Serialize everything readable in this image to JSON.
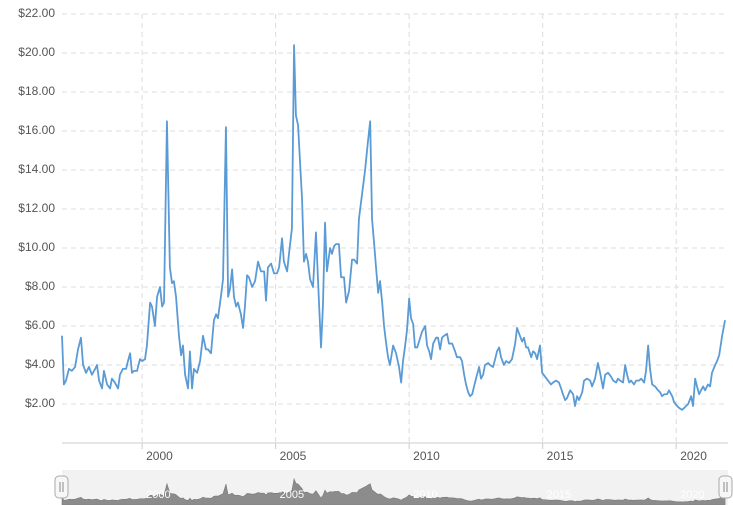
{
  "chart_data": {
    "type": "line",
    "color": "#5b9bd5",
    "grid": true,
    "xlim": [
      1997,
      2021.94
    ],
    "ylim": [
      0,
      22
    ],
    "xticks": [
      2000,
      2005,
      2010,
      2015,
      2020
    ],
    "yticks": [
      {
        "value": 2,
        "label": "$2.00"
      },
      {
        "value": 4,
        "label": "$4.00"
      },
      {
        "value": 6,
        "label": "$6.00"
      },
      {
        "value": 8,
        "label": "$8.00"
      },
      {
        "value": 10,
        "label": "$10.00"
      },
      {
        "value": 12,
        "label": "$12.00"
      },
      {
        "value": 14,
        "label": "$14.00"
      },
      {
        "value": 16,
        "label": "$16.00"
      },
      {
        "value": 18,
        "label": "$18.00"
      },
      {
        "value": 20,
        "label": "$20.00"
      },
      {
        "value": 22,
        "label": "$22.00"
      }
    ],
    "x": [
      1997.0,
      1997.07,
      1997.15,
      1997.26,
      1997.37,
      1997.49,
      1997.6,
      1997.71,
      1997.79,
      1997.9,
      1998.01,
      1998.12,
      1998.24,
      1998.31,
      1998.39,
      1998.5,
      1998.57,
      1998.69,
      1998.8,
      1998.87,
      1998.98,
      1999.1,
      1999.17,
      1999.28,
      1999.4,
      1999.47,
      1999.55,
      1999.62,
      1999.7,
      1999.81,
      1999.92,
      2000.0,
      2000.11,
      2000.18,
      2000.3,
      2000.37,
      2000.48,
      2000.56,
      2000.67,
      2000.75,
      2000.82,
      2000.93,
      2001.04,
      2001.12,
      2001.19,
      2001.27,
      2001.38,
      2001.46,
      2001.53,
      2001.61,
      2001.72,
      2001.79,
      2001.87,
      2001.94,
      2002.06,
      2002.17,
      2002.28,
      2002.39,
      2002.47,
      2002.58,
      2002.69,
      2002.77,
      2002.84,
      2002.95,
      2003.03,
      2003.14,
      2003.22,
      2003.29,
      2003.37,
      2003.44,
      2003.52,
      2003.59,
      2003.7,
      2003.78,
      2003.85,
      2003.93,
      2004.0,
      2004.12,
      2004.23,
      2004.34,
      2004.45,
      2004.57,
      2004.64,
      2004.71,
      2004.83,
      2004.94,
      2005.05,
      2005.13,
      2005.24,
      2005.31,
      2005.43,
      2005.5,
      2005.61,
      2005.69,
      2005.76,
      2005.84,
      2005.91,
      2005.99,
      2006.06,
      2006.14,
      2006.21,
      2006.29,
      2006.4,
      2006.51,
      2006.63,
      2006.7,
      2006.77,
      2006.85,
      2006.92,
      2007.04,
      2007.11,
      2007.19,
      2007.26,
      2007.37,
      2007.45,
      2007.56,
      2007.64,
      2007.75,
      2007.86,
      2007.94,
      2008.05,
      2008.12,
      2008.24,
      2008.35,
      2008.46,
      2008.54,
      2008.61,
      2008.69,
      2008.76,
      2008.84,
      2008.91,
      2008.99,
      2009.06,
      2009.13,
      2009.21,
      2009.28,
      2009.4,
      2009.51,
      2009.62,
      2009.7,
      2009.77,
      2009.85,
      2009.92,
      2010.0,
      2010.07,
      2010.15,
      2010.22,
      2010.3,
      2010.37,
      2010.48,
      2010.6,
      2010.67,
      2010.75,
      2010.82,
      2010.9,
      2011.01,
      2011.08,
      2011.16,
      2011.23,
      2011.31,
      2011.42,
      2011.49,
      2011.61,
      2011.72,
      2011.79,
      2011.91,
      2011.98,
      2012.06,
      2012.13,
      2012.21,
      2012.28,
      2012.36,
      2012.43,
      2012.54,
      2012.62,
      2012.69,
      2012.77,
      2012.84,
      2012.96,
      2013.03,
      2013.14,
      2013.22,
      2013.29,
      2013.37,
      2013.44,
      2013.55,
      2013.63,
      2013.74,
      2013.85,
      2013.97,
      2014.04,
      2014.12,
      2014.23,
      2014.3,
      2014.38,
      2014.45,
      2014.57,
      2014.64,
      2014.72,
      2014.79,
      2014.9,
      2014.98,
      2015.09,
      2015.2,
      2015.31,
      2015.39,
      2015.5,
      2015.61,
      2015.69,
      2015.76,
      2015.84,
      2015.91,
      2016.03,
      2016.14,
      2016.21,
      2016.29,
      2016.36,
      2016.48,
      2016.55,
      2016.66,
      2016.78,
      2016.85,
      2016.96,
      2017.07,
      2017.15,
      2017.26,
      2017.34,
      2017.45,
      2017.56,
      2017.64,
      2017.75,
      2017.82,
      2017.9,
      2018.01,
      2018.09,
      2018.16,
      2018.24,
      2018.31,
      2018.42,
      2018.5,
      2018.61,
      2018.69,
      2018.8,
      2018.87,
      2018.95,
      2019.02,
      2019.1,
      2019.21,
      2019.32,
      2019.4,
      2019.47,
      2019.55,
      2019.66,
      2019.73,
      2019.85,
      2019.92,
      2020.03,
      2020.11,
      2020.22,
      2020.3,
      2020.37,
      2020.45,
      2020.56,
      2020.63,
      2020.71,
      2020.78,
      2020.86,
      2020.93,
      2021.01,
      2021.08,
      2021.19,
      2021.27,
      2021.34,
      2021.46,
      2021.53,
      2021.61,
      2021.72,
      2021.83
    ],
    "values": [
      5.5,
      3.0,
      3.2,
      3.8,
      3.7,
      3.9,
      4.8,
      5.4,
      4.0,
      3.6,
      3.9,
      3.5,
      3.8,
      4.0,
      3.2,
      2.8,
      3.7,
      3.0,
      2.8,
      3.3,
      3.1,
      2.8,
      3.5,
      3.8,
      3.8,
      4.2,
      4.6,
      3.6,
      3.7,
      3.7,
      4.3,
      4.2,
      4.3,
      5.0,
      7.2,
      7.0,
      6.0,
      7.5,
      8.0,
      7.0,
      7.2,
      16.5,
      9.0,
      8.2,
      8.3,
      7.5,
      5.5,
      4.5,
      5.0,
      3.5,
      2.8,
      4.7,
      2.8,
      3.8,
      3.6,
      4.2,
      5.5,
      4.8,
      4.8,
      4.6,
      6.3,
      6.6,
      6.4,
      7.5,
      8.4,
      16.2,
      7.5,
      7.9,
      8.9,
      7.5,
      7.0,
      7.2,
      6.6,
      5.9,
      7.0,
      8.6,
      8.5,
      8.0,
      8.3,
      9.3,
      8.8,
      8.8,
      7.3,
      9.0,
      9.2,
      8.7,
      8.7,
      9.0,
      10.5,
      9.3,
      8.8,
      9.7,
      11.0,
      20.4,
      16.8,
      16.3,
      14.5,
      12.5,
      9.3,
      9.7,
      9.3,
      8.4,
      8.0,
      10.8,
      7.0,
      4.9,
      7.0,
      11.3,
      8.8,
      10.0,
      9.7,
      10.1,
      10.2,
      10.2,
      8.5,
      8.5,
      7.2,
      7.8,
      9.4,
      9.4,
      9.2,
      11.5,
      12.8,
      14.0,
      15.5,
      16.5,
      11.5,
      10.2,
      9.0,
      7.7,
      8.3,
      7.2,
      6.0,
      5.2,
      4.4,
      4.0,
      5.0,
      4.6,
      3.9,
      3.1,
      4.2,
      5.0,
      5.8,
      7.4,
      6.4,
      6.1,
      4.9,
      4.9,
      5.2,
      5.7,
      6.0,
      5.0,
      4.7,
      4.3,
      5.1,
      5.4,
      5.4,
      4.8,
      5.4,
      5.5,
      5.6,
      5.1,
      5.1,
      4.7,
      4.4,
      4.4,
      4.2,
      3.5,
      3.0,
      2.6,
      2.4,
      2.5,
      2.9,
      3.5,
      3.9,
      3.3,
      3.5,
      4.0,
      4.1,
      4.0,
      3.9,
      4.3,
      4.7,
      4.9,
      4.4,
      4.0,
      4.2,
      4.1,
      4.3,
      5.1,
      5.9,
      5.6,
      5.2,
      5.4,
      4.9,
      4.9,
      4.4,
      4.7,
      4.6,
      4.3,
      5.0,
      3.6,
      3.4,
      3.2,
      3.0,
      3.1,
      3.2,
      3.1,
      2.8,
      2.5,
      2.2,
      2.3,
      2.7,
      2.5,
      1.9,
      2.4,
      2.2,
      2.6,
      3.2,
      3.3,
      3.2,
      2.9,
      3.3,
      4.1,
      3.6,
      2.8,
      3.5,
      3.6,
      3.4,
      3.2,
      3.1,
      3.3,
      3.2,
      3.1,
      4.0,
      3.5,
      3.1,
      3.2,
      3.0,
      3.2,
      3.2,
      3.3,
      3.1,
      3.7,
      5.0,
      3.8,
      3.0,
      2.9,
      2.7,
      2.6,
      2.4,
      2.5,
      2.5,
      2.7,
      2.4,
      2.1,
      1.9,
      1.8,
      1.7,
      1.8,
      1.9,
      2.0,
      2.4,
      1.9,
      3.3,
      2.9,
      2.5,
      2.7,
      2.9,
      2.7,
      3.0,
      2.9,
      3.6,
      4.0,
      4.2,
      4.5,
      5.5,
      6.3
    ]
  }
}
